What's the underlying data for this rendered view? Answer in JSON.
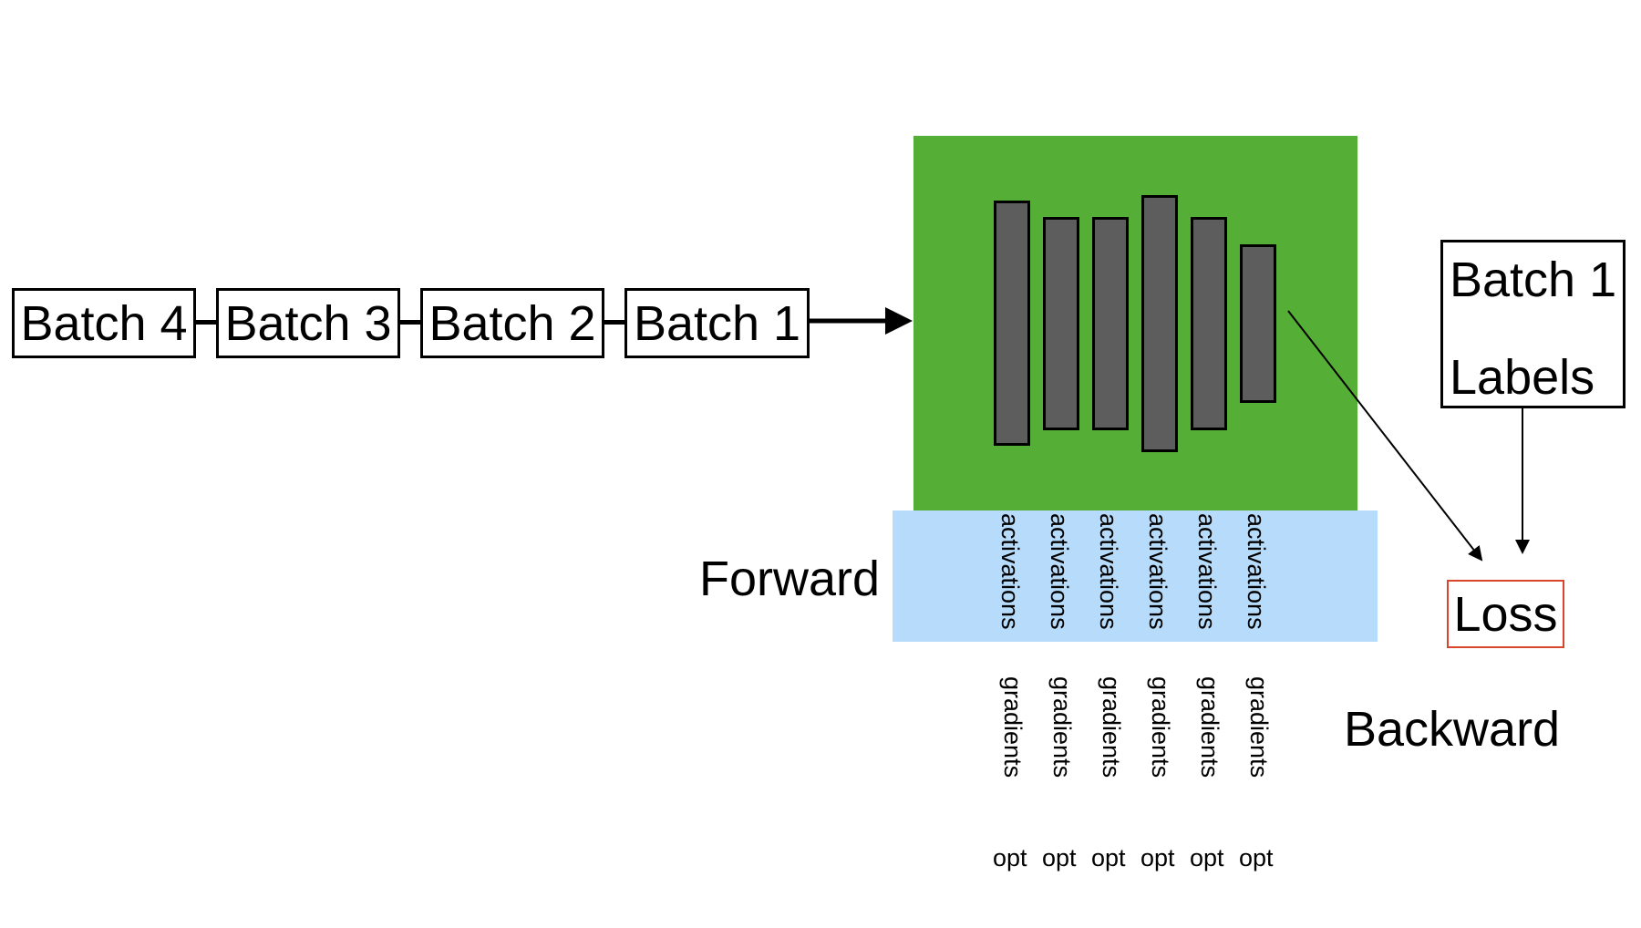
{
  "batches": [
    "Batch 4",
    "Batch 3",
    "Batch 2",
    "Batch 1"
  ],
  "labels_box": {
    "line1": "Batch 1",
    "line2": "Labels"
  },
  "forward_label": "Forward",
  "backward_label": "Backward",
  "loss_label": "Loss",
  "activation_labels": [
    "activations",
    "activations",
    "activations",
    "activations",
    "activations",
    "activations"
  ],
  "gradient_labels": [
    "gradients",
    "gradients",
    "gradients",
    "gradients",
    "gradients",
    "gradients"
  ],
  "opt_labels": [
    "opt",
    "opt",
    "opt",
    "opt",
    "opt",
    "opt"
  ],
  "colors": {
    "model_background": "#55ae35",
    "layer_fill": "#5d5d5d",
    "activation_strip": "#b7dcfb",
    "loss_border": "#d9452b"
  }
}
